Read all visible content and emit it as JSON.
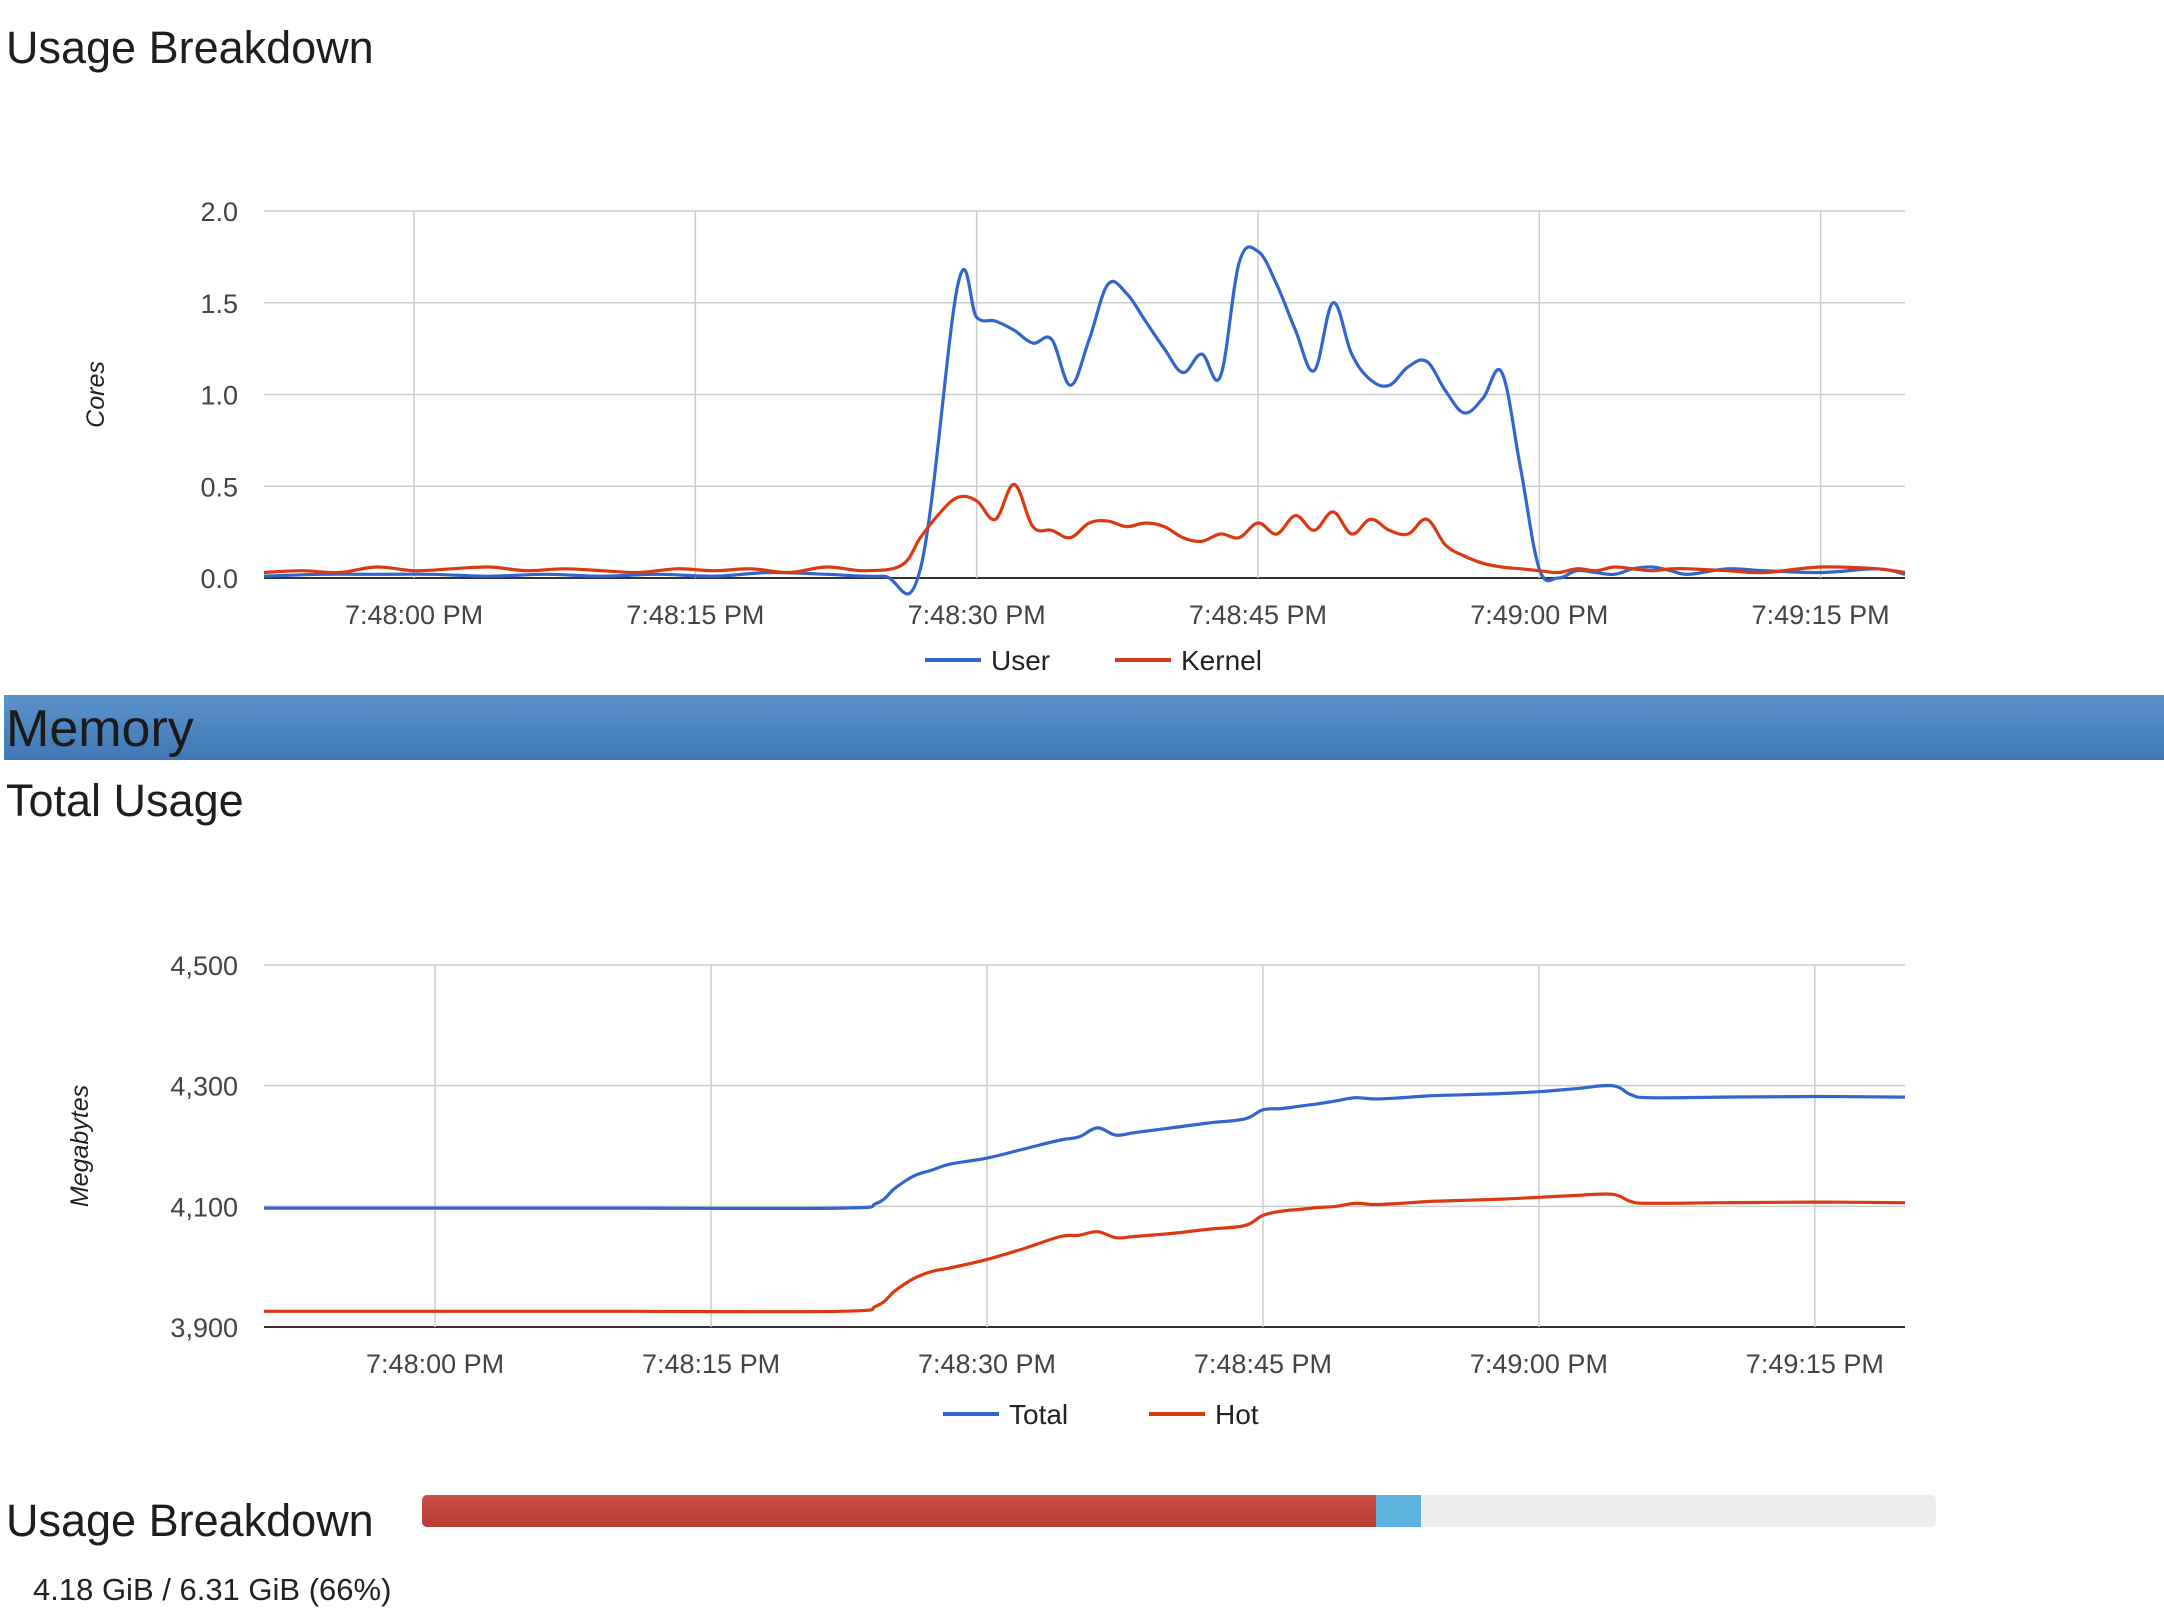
{
  "cpu_section": {
    "title": "Usage Breakdown"
  },
  "memory_section": {
    "header": "Memory",
    "title": "Total Usage",
    "breakdown_title": "Usage Breakdown",
    "breakdown_caption": "4.18 GiB / 6.31 GiB (66%)",
    "breakdown_bar": {
      "used_fraction": 0.63,
      "cache_fraction": 0.03,
      "used_color": "#c0433e",
      "cache_color": "#5bb2da"
    }
  },
  "chart_data": [
    {
      "type": "line",
      "ylabel": "Cores",
      "ylim": [
        0,
        2.0
      ],
      "y_ticks": [
        "0.0",
        "0.5",
        "1.0",
        "1.5",
        "2.0"
      ],
      "x_ticks": [
        "7:48:00 PM",
        "7:48:15 PM",
        "7:48:30 PM",
        "7:48:45 PM",
        "7:49:00 PM",
        "7:49:15 PM"
      ],
      "x_tick_seconds": [
        0,
        15,
        30,
        45,
        60,
        75
      ],
      "x_range_seconds": [
        -8,
        79.5
      ],
      "grid": true,
      "legend": "bottom",
      "series": [
        {
          "name": "User",
          "color": "#3366cc",
          "x": [
            -8,
            -5,
            -2,
            1,
            4,
            7,
            10,
            13,
            16,
            19,
            22,
            25,
            27,
            29,
            30,
            31,
            32,
            33,
            34,
            35,
            36,
            37,
            38,
            39,
            40,
            41,
            42,
            43,
            44,
            45,
            46,
            47,
            48,
            49,
            50,
            51,
            52,
            53,
            54,
            55,
            56,
            57,
            58,
            59,
            60,
            61,
            62,
            63,
            64,
            65,
            66,
            67,
            68,
            70,
            72,
            75,
            78,
            79.5
          ],
          "values": [
            0.01,
            0.02,
            0.02,
            0.02,
            0.01,
            0.02,
            0.01,
            0.02,
            0.01,
            0.03,
            0.02,
            0.01,
            0.05,
            1.6,
            1.42,
            1.4,
            1.35,
            1.28,
            1.3,
            1.05,
            1.3,
            1.6,
            1.55,
            1.4,
            1.25,
            1.12,
            1.22,
            1.1,
            1.72,
            1.78,
            1.6,
            1.35,
            1.13,
            1.5,
            1.22,
            1.08,
            1.05,
            1.15,
            1.18,
            1.02,
            0.9,
            0.98,
            1.12,
            0.6,
            0.05,
            0.0,
            0.04,
            0.03,
            0.02,
            0.05,
            0.06,
            0.04,
            0.02,
            0.05,
            0.04,
            0.03,
            0.05,
            0.02
          ]
        },
        {
          "name": "Kernel",
          "color": "#dc3912",
          "x": [
            -8,
            -6,
            -4,
            -2,
            0,
            2,
            4,
            6,
            8,
            10,
            12,
            14,
            16,
            18,
            20,
            22,
            24,
            26,
            27,
            28,
            29,
            30,
            31,
            32,
            33,
            34,
            35,
            36,
            37,
            38,
            39,
            40,
            41,
            42,
            43,
            44,
            45,
            46,
            47,
            48,
            49,
            50,
            51,
            52,
            53,
            54,
            55,
            56,
            57,
            58,
            59,
            60,
            61,
            62,
            63,
            64,
            65,
            66,
            67,
            68,
            70,
            72,
            75,
            78,
            79.5
          ],
          "values": [
            0.03,
            0.04,
            0.03,
            0.06,
            0.04,
            0.05,
            0.06,
            0.04,
            0.05,
            0.04,
            0.03,
            0.05,
            0.04,
            0.05,
            0.03,
            0.06,
            0.04,
            0.07,
            0.22,
            0.35,
            0.44,
            0.42,
            0.32,
            0.51,
            0.28,
            0.26,
            0.22,
            0.3,
            0.31,
            0.28,
            0.3,
            0.28,
            0.22,
            0.2,
            0.24,
            0.22,
            0.3,
            0.24,
            0.34,
            0.26,
            0.36,
            0.24,
            0.32,
            0.26,
            0.24,
            0.32,
            0.18,
            0.12,
            0.08,
            0.06,
            0.05,
            0.04,
            0.03,
            0.05,
            0.04,
            0.06,
            0.05,
            0.04,
            0.05,
            0.05,
            0.04,
            0.03,
            0.06,
            0.05,
            0.03
          ]
        }
      ]
    },
    {
      "type": "line",
      "ylabel": "Megabytes",
      "ylim": [
        3900,
        4500
      ],
      "y_ticks": [
        "3,900",
        "4,100",
        "4,300",
        "4,500"
      ],
      "x_ticks": [
        "7:48:00 PM",
        "7:48:15 PM",
        "7:48:30 PM",
        "7:48:45 PM",
        "7:49:00 PM",
        "7:49:15 PM"
      ],
      "x_tick_seconds": [
        0,
        15,
        30,
        45,
        60,
        75
      ],
      "x_range_seconds": [
        -9.3,
        79.9
      ],
      "grid": true,
      "legend": "bottom",
      "series": [
        {
          "name": "Total",
          "color": "#3366cc",
          "x": [
            -9.3,
            0,
            10,
            22,
            24,
            25,
            26,
            27,
            28,
            30,
            32,
            34,
            35,
            36,
            37,
            38,
            40,
            42,
            44,
            45,
            46,
            47,
            48,
            49,
            50,
            51,
            52,
            54,
            56,
            58,
            60,
            62,
            64,
            65,
            66,
            70,
            75,
            79.9
          ],
          "values": [
            4097,
            4097,
            4097,
            4097,
            4105,
            4130,
            4150,
            4160,
            4170,
            4180,
            4195,
            4210,
            4215,
            4230,
            4218,
            4222,
            4230,
            4238,
            4245,
            4260,
            4262,
            4266,
            4270,
            4275,
            4280,
            4278,
            4279,
            4283,
            4285,
            4287,
            4290,
            4295,
            4300,
            4285,
            4280,
            4281,
            4282,
            4281
          ]
        },
        {
          "name": "Hot",
          "color": "#dc3912",
          "x": [
            -9.3,
            0,
            10,
            22,
            24,
            25,
            26,
            27,
            28,
            30,
            32,
            34,
            35,
            36,
            37,
            38,
            40,
            42,
            44,
            45,
            46,
            47,
            48,
            49,
            50,
            51,
            52,
            54,
            56,
            58,
            60,
            62,
            64,
            65,
            66,
            70,
            75,
            79.9
          ],
          "values": [
            3926,
            3926,
            3926,
            3926,
            3935,
            3960,
            3980,
            3992,
            3998,
            4012,
            4030,
            4050,
            4052,
            4058,
            4048,
            4050,
            4055,
            4062,
            4068,
            4085,
            4092,
            4095,
            4098,
            4100,
            4105,
            4103,
            4104,
            4108,
            4110,
            4112,
            4115,
            4118,
            4120,
            4108,
            4105,
            4106,
            4107,
            4106
          ]
        }
      ]
    }
  ]
}
